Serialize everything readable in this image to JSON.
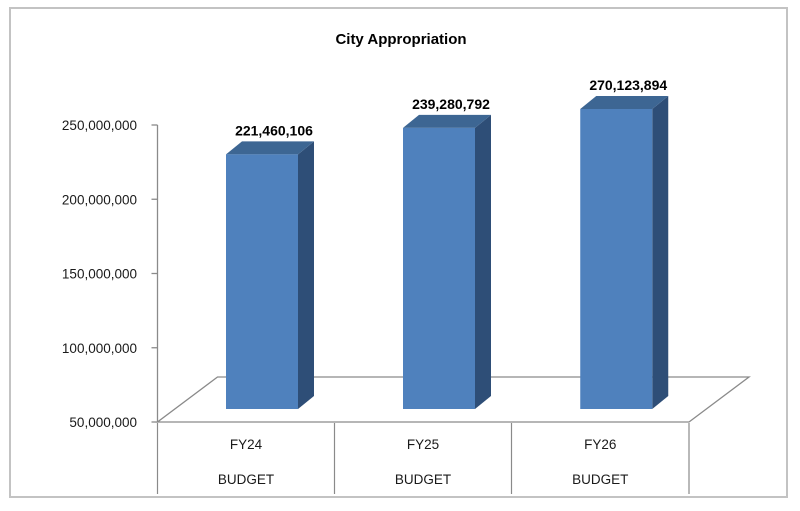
{
  "chart_data": {
    "type": "bar",
    "style": "3d-column",
    "title": "City Appropriation",
    "categories": [
      {
        "line1": "FY24",
        "line2": "BUDGET"
      },
      {
        "line1": "FY25",
        "line2": "BUDGET"
      },
      {
        "line1": "FY26",
        "line2": "BUDGET"
      }
    ],
    "values": [
      221460106,
      239280792,
      270123894
    ],
    "value_labels": [
      "221,460,106",
      "239,280,792",
      "270,123,894"
    ],
    "y_axis": {
      "min": 50000000,
      "max": 250000000,
      "tick_values": [
        250000000,
        200000000,
        150000000,
        100000000,
        50000000
      ],
      "tick_labels": [
        "250,000,000",
        "200,000,000",
        "150,000,000",
        "100,000,000",
        "50,000,000"
      ]
    },
    "legend": "none",
    "gridlines": false,
    "colors": {
      "bar_front": "#4F81BD",
      "bar_top": "#3D6693",
      "bar_side": "#2E4E77",
      "axis_line": "#8A8A8A",
      "label_text": "#000000",
      "tick_text": "#1A1A1A",
      "chart_border": "#C3C3C3",
      "background": "#FFFFFF"
    }
  }
}
